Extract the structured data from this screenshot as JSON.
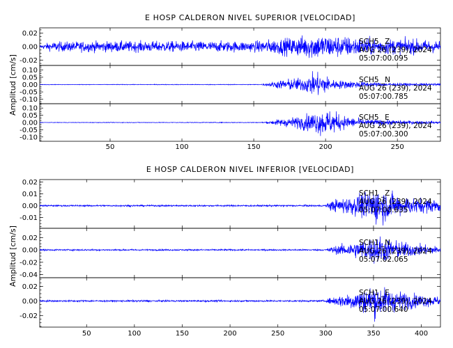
{
  "chart_data": [
    {
      "type": "line",
      "title": "E HOSP CALDERON NIVEL SUPERIOR [VELOCIDAD]",
      "ylabel": "Amplitud [cm/s]",
      "xlim": [
        1,
        280
      ],
      "x_ticks": [
        50,
        100,
        150,
        200,
        250
      ],
      "panels": [
        {
          "channel": "SCH5 _Z",
          "date": "AUG 26 (239), 2024",
          "time": "05:07:00.095",
          "ylim": [
            -0.028,
            0.028
          ],
          "y_ticks": [
            -0.02,
            0.0,
            0.02
          ],
          "y_tick_labels": [
            "-0.02",
            "0.00",
            "0.02"
          ],
          "envelope": [
            [
              1,
              0.003
            ],
            [
              10,
              0.009
            ],
            [
              40,
              0.01
            ],
            [
              80,
              0.01
            ],
            [
              120,
              0.01
            ],
            [
              150,
              0.01
            ],
            [
              156,
              0.012
            ],
            [
              165,
              0.014
            ],
            [
              180,
              0.018
            ],
            [
              192,
              0.024
            ],
            [
              200,
              0.022
            ],
            [
              210,
              0.02
            ],
            [
              225,
              0.017
            ],
            [
              240,
              0.015
            ],
            [
              260,
              0.014
            ],
            [
              280,
              0.011
            ]
          ]
        },
        {
          "channel": "SCH5 _N",
          "date": "AUG 26 (239), 2024",
          "time": "05:07:00.785",
          "ylim": [
            -0.13,
            0.13
          ],
          "y_ticks": [
            -0.1,
            -0.05,
            0.0,
            0.05,
            0.1
          ],
          "y_tick_labels": [
            "-0.10",
            "-0.05",
            "0.00",
            "0.05",
            "0.10"
          ],
          "envelope": [
            [
              1,
              0.002
            ],
            [
              100,
              0.003
            ],
            [
              155,
              0.003
            ],
            [
              158,
              0.01
            ],
            [
              165,
              0.03
            ],
            [
              175,
              0.05
            ],
            [
              185,
              0.06
            ],
            [
              190,
              0.09
            ],
            [
              196,
              0.1
            ],
            [
              200,
              0.08
            ],
            [
              205,
              0.04
            ],
            [
              220,
              0.03
            ],
            [
              240,
              0.015
            ],
            [
              260,
              0.012
            ],
            [
              280,
              0.01
            ]
          ]
        },
        {
          "channel": "SCH5 _E",
          "date": "AUG 26 (239), 2024",
          "time": "05:07:00.300",
          "ylim": [
            -0.13,
            0.13
          ],
          "y_ticks": [
            -0.1,
            -0.05,
            0.0,
            0.05,
            0.1
          ],
          "y_tick_labels": [
            "-0.10",
            "-0.05",
            "0.00",
            "0.05",
            "0.10"
          ],
          "envelope": [
            [
              1,
              0.002
            ],
            [
              100,
              0.003
            ],
            [
              155,
              0.003
            ],
            [
              160,
              0.01
            ],
            [
              168,
              0.03
            ],
            [
              180,
              0.05
            ],
            [
              190,
              0.08
            ],
            [
              198,
              0.11
            ],
            [
              205,
              0.1
            ],
            [
              212,
              0.06
            ],
            [
              225,
              0.03
            ],
            [
              245,
              0.02
            ],
            [
              262,
              0.015
            ],
            [
              280,
              0.01
            ]
          ]
        }
      ]
    },
    {
      "type": "line",
      "title": "E HOSP CALDERON NIVEL INFERIOR [VELOCIDAD]",
      "ylabel": "Amplitud [cm/s]",
      "xlim": [
        1,
        420
      ],
      "x_ticks": [
        50,
        100,
        150,
        200,
        250,
        300,
        350,
        400
      ],
      "panels": [
        {
          "channel": "SCH1 _Z",
          "date": "AUG 26 (239), 2024",
          "time": "05:07:00.635",
          "ylim": [
            -0.019,
            0.022
          ],
          "y_ticks": [
            -0.01,
            0.0,
            0.01,
            0.02
          ],
          "y_tick_labels": [
            "-0.01",
            "0.00",
            "0.01",
            "0.02"
          ],
          "envelope": [
            [
              1,
              0.0008
            ],
            [
              150,
              0.0009
            ],
            [
              300,
              0.0009
            ],
            [
              305,
              0.005
            ],
            [
              315,
              0.008
            ],
            [
              330,
              0.01
            ],
            [
              345,
              0.016
            ],
            [
              355,
              0.02
            ],
            [
              365,
              0.015
            ],
            [
              380,
              0.01
            ],
            [
              400,
              0.008
            ],
            [
              415,
              0.007
            ]
          ]
        },
        {
          "channel": "SCH1 _N",
          "date": "AUG 26 (239), 2024",
          "time": "05:07:02.065",
          "ylim": [
            -0.045,
            0.035
          ],
          "y_ticks": [
            -0.04,
            -0.02,
            0.0,
            0.02
          ],
          "y_tick_labels": [
            "-0.04",
            "-0.02",
            "0.00",
            "0.02"
          ],
          "envelope": [
            [
              1,
              0.0015
            ],
            [
              150,
              0.0015
            ],
            [
              300,
              0.0015
            ],
            [
              305,
              0.006
            ],
            [
              320,
              0.012
            ],
            [
              340,
              0.02
            ],
            [
              355,
              0.03
            ],
            [
              365,
              0.022
            ],
            [
              385,
              0.015
            ],
            [
              405,
              0.01
            ],
            [
              415,
              0.008
            ]
          ]
        },
        {
          "channel": "SCH1 _E",
          "date": "AUG 26 (239), 2024",
          "time": "05:07:00.640",
          "ylim": [
            -0.036,
            0.032
          ],
          "y_ticks": [
            -0.02,
            0.0,
            0.02
          ],
          "y_tick_labels": [
            "-0.02",
            "0.00",
            "0.02"
          ],
          "envelope": [
            [
              1,
              0.0015
            ],
            [
              150,
              0.0015
            ],
            [
              300,
              0.0015
            ],
            [
              305,
              0.006
            ],
            [
              320,
              0.012
            ],
            [
              340,
              0.02
            ],
            [
              352,
              0.028
            ],
            [
              362,
              0.022
            ],
            [
              385,
              0.014
            ],
            [
              405,
              0.01
            ],
            [
              415,
              0.008
            ]
          ]
        }
      ]
    }
  ]
}
